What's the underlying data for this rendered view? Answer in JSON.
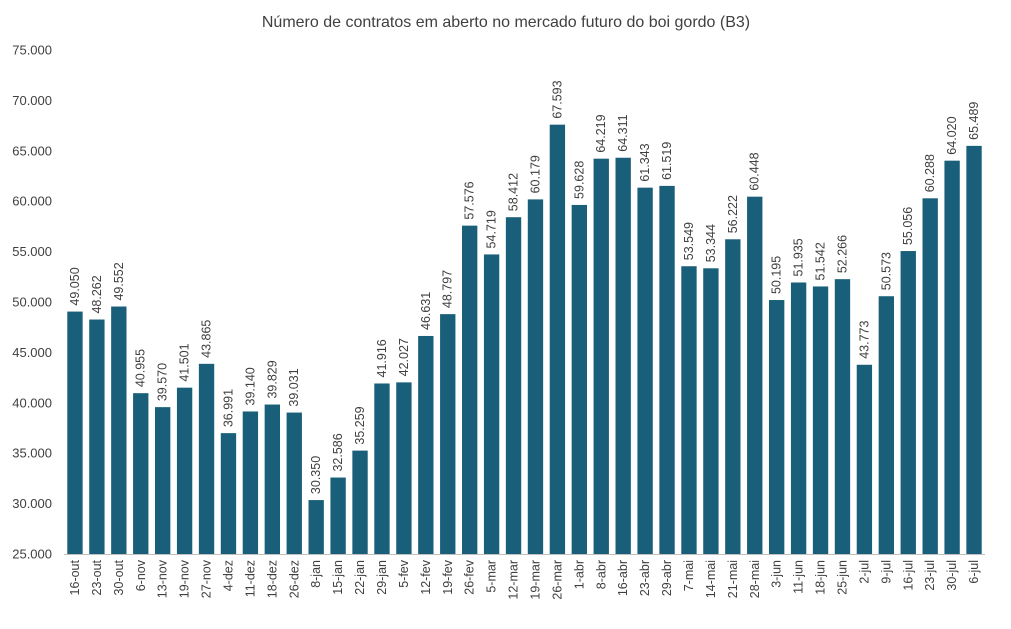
{
  "chart_data": {
    "type": "bar",
    "title": "Número de contratos em aberto no mercado futuro do boi gordo (B3)",
    "xlabel": "",
    "ylabel": "",
    "ylim": [
      25000,
      75000
    ],
    "ytick_step": 5000,
    "ytick_labels": [
      "25.000",
      "30.000",
      "35.000",
      "40.000",
      "45.000",
      "50.000",
      "55.000",
      "60.000",
      "65.000",
      "70.000",
      "75.000"
    ],
    "grid": false,
    "legend": "none",
    "bar_color": "#1a5f7a",
    "categories": [
      "16-out",
      "23-out",
      "30-out",
      "6-nov",
      "13-nov",
      "19-nov",
      "27-nov",
      "4-dez",
      "11-dez",
      "18-dez",
      "26-dez",
      "8-jan",
      "15-jan",
      "22-jan",
      "29-jan",
      "5-fev",
      "12-fev",
      "19-fev",
      "26-fev",
      "5-mar",
      "12-mar",
      "19-mar",
      "26-mar",
      "1-abr",
      "8-abr",
      "16-abr",
      "23-abr",
      "29-abr",
      "7-mai",
      "14-mai",
      "21-mai",
      "28-mai",
      "3-jun",
      "11-jun",
      "18-jun",
      "25-jun",
      "2-jul",
      "9-jul",
      "16-jul",
      "23-jul",
      "30-jul",
      "6-jul"
    ],
    "values": [
      49050,
      48262,
      49552,
      40955,
      39570,
      41501,
      43865,
      36991,
      39140,
      39829,
      39031,
      30350,
      32586,
      35259,
      41916,
      42027,
      46631,
      48797,
      57576,
      54719,
      58412,
      60179,
      67593,
      59628,
      64219,
      64311,
      61343,
      61519,
      53549,
      53344,
      56222,
      60448,
      50195,
      51935,
      51542,
      52266,
      43773,
      50573,
      55056,
      60288,
      64020,
      65489
    ],
    "value_labels": [
      "49.050",
      "48.262",
      "49.552",
      "40.955",
      "39.570",
      "41.501",
      "43.865",
      "36.991",
      "39.140",
      "39.829",
      "39.031",
      "30.350",
      "32.586",
      "35.259",
      "41.916",
      "42.027",
      "46.631",
      "48.797",
      "57.576",
      "54.719",
      "58.412",
      "60.179",
      "67.593",
      "59.628",
      "64.219",
      "64.311",
      "61.343",
      "61.519",
      "53.549",
      "53.344",
      "56.222",
      "60.448",
      "50.195",
      "51.935",
      "51.542",
      "52.266",
      "43.773",
      "50.573",
      "55.056",
      "60.288",
      "64.020",
      "65.489"
    ]
  }
}
